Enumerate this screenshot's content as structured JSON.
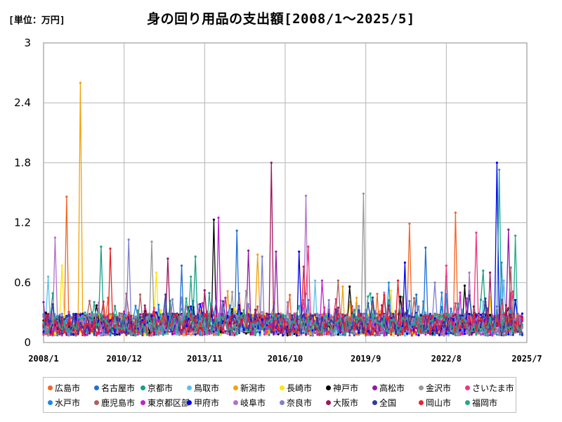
{
  "chart_data": {
    "type": "line",
    "title": "身の回り用品の支出額[2008/1～2025/5]",
    "unit_label": "[単位：万円]",
    "xlabel": "",
    "ylabel": "",
    "ylim": [
      0,
      3
    ],
    "yticks": [
      "0",
      "0.6",
      "1.2",
      "1.8",
      "2.4",
      "3"
    ],
    "xticks": [
      "2008/1",
      "2010/12",
      "2013/11",
      "2016/10",
      "2019/9",
      "2022/8",
      "2025/7"
    ],
    "x_start": "2008/1",
    "x_end": "2025/5",
    "grid": true,
    "legend_position": "bottom",
    "series": [
      {
        "name": "広島市",
        "color": "#f26522",
        "peaks": [
          [
            13,
            1.46
          ],
          [
            211,
            1.19
          ],
          [
            237,
            1.3
          ]
        ]
      },
      {
        "name": "名古屋市",
        "color": "#1f6fd6",
        "peaks": [
          [
            79,
            0.77
          ],
          [
            112,
            1.12
          ],
          [
            220,
            0.95
          ]
        ]
      },
      {
        "name": "京都市",
        "color": "#16a085",
        "peaks": [
          [
            33,
            0.96
          ],
          [
            87,
            0.86
          ],
          [
            254,
            0.72
          ]
        ]
      },
      {
        "name": "鳥取市",
        "color": "#5bc0eb",
        "peaks": [
          [
            2,
            0.66
          ],
          [
            156,
            0.62
          ],
          [
            266,
            0.62
          ]
        ]
      },
      {
        "name": "新潟市",
        "color": "#f0a30a",
        "peaks": [
          [
            21,
            2.6
          ],
          [
            124,
            0.88
          ],
          [
            172,
            0.56
          ]
        ]
      },
      {
        "name": "長崎市",
        "color": "#ffe600",
        "peaks": [
          [
            10,
            0.77
          ],
          [
            65,
            0.7
          ],
          [
            200,
            0.52
          ]
        ]
      },
      {
        "name": "神戸市",
        "color": "#000000",
        "peaks": [
          [
            98,
            1.23
          ],
          [
            176,
            0.56
          ],
          [
            243,
            0.57
          ]
        ]
      },
      {
        "name": "高松市",
        "color": "#8e1ba5",
        "peaks": [
          [
            118,
            0.92
          ],
          [
            134,
            0.91
          ],
          [
            268,
            1.13
          ]
        ]
      },
      {
        "name": "金沢市",
        "color": "#999999",
        "peaks": [
          [
            184,
            1.49
          ],
          [
            62,
            1.01
          ],
          [
            232,
            0.66
          ]
        ]
      },
      {
        "name": "さいたま市",
        "color": "#f0357f",
        "peaks": [
          [
            153,
            0.96
          ],
          [
            232,
            0.77
          ],
          [
            250,
            1.1
          ]
        ]
      },
      {
        "name": "水戸市",
        "color": "#1e88e5",
        "peaks": [
          [
            199,
            0.6
          ],
          [
            230,
            0.5
          ],
          [
            264,
            0.8
          ]
        ]
      },
      {
        "name": "鹿児島市",
        "color": "#b05f5f",
        "peaks": [
          [
            56,
            0.48
          ],
          [
            170,
            0.62
          ],
          [
            270,
            0.75
          ]
        ]
      },
      {
        "name": "東京都区部",
        "color": "#c21fd1",
        "peaks": [
          [
            101,
            1.25
          ],
          [
            160,
            0.62
          ],
          [
            240,
            0.5
          ]
        ]
      },
      {
        "name": "甲府市",
        "color": "#0000ee",
        "peaks": [
          [
            147,
            0.91
          ],
          [
            208,
            0.8
          ],
          [
            261,
            1.8
          ]
        ]
      },
      {
        "name": "岐阜市",
        "color": "#b073c7",
        "peaks": [
          [
            6,
            1.05
          ],
          [
            151,
            1.47
          ],
          [
            246,
            0.7
          ]
        ]
      },
      {
        "name": "奈良市",
        "color": "#7f7fd1",
        "peaks": [
          [
            49,
            1.03
          ],
          [
            126,
            0.86
          ],
          [
            226,
            0.6
          ]
        ]
      },
      {
        "name": "大阪市",
        "color": "#a0165b",
        "peaks": [
          [
            132,
            1.8
          ],
          [
            72,
            0.84
          ],
          [
            258,
            0.7
          ]
        ]
      },
      {
        "name": "全国",
        "color": "#2c3e99",
        "peaks": [
          [
            70,
            0.48
          ],
          [
            190,
            0.45
          ],
          [
            255,
            0.44
          ]
        ]
      },
      {
        "name": "岡山市",
        "color": "#e8232c",
        "peaks": [
          [
            39,
            0.94
          ],
          [
            150,
            0.76
          ],
          [
            204,
            0.62
          ]
        ]
      },
      {
        "name": "福岡市",
        "color": "#22a88a",
        "peaks": [
          [
            263,
            1.73
          ],
          [
            85,
            0.66
          ],
          [
            272,
            1.07
          ]
        ]
      }
    ]
  }
}
